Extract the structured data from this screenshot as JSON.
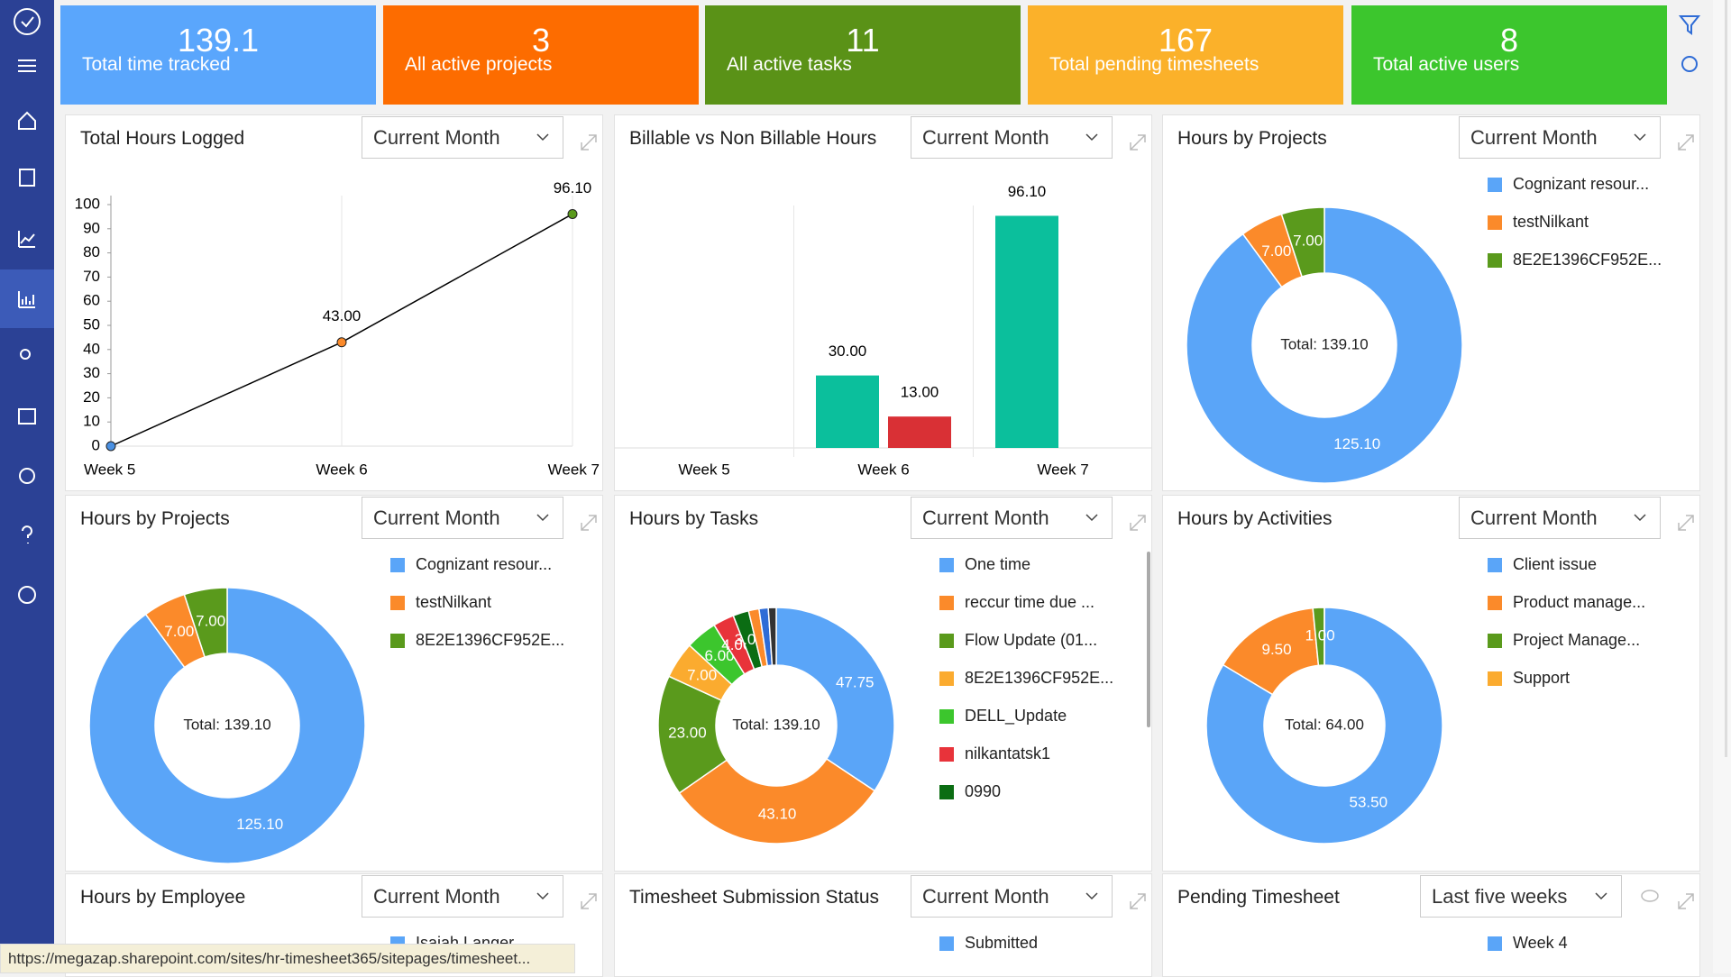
{
  "status_url": "https://megazap.sharepoint.com/sites/hr-timesheet365/sitepages/timesheet...",
  "kpis": [
    {
      "value": 139.1,
      "label": "Total time tracked",
      "color": "#5aa6fc"
    },
    {
      "value": 3,
      "label": "All active projects",
      "color": "#fd6c00"
    },
    {
      "value": 11,
      "label": "All active tasks",
      "color": "#5a9217"
    },
    {
      "value": 167,
      "label": "Total pending timesheets",
      "color": "#fbb12a"
    },
    {
      "value": 8,
      "label": "Total active users",
      "color": "#3cc62d"
    }
  ],
  "widgets": [
    {
      "title": "Total Hours Logged",
      "filter": "Current Month",
      "chart_data": {
        "type": "line",
        "categories": [
          "Week 5",
          "Week 6",
          "Week 7"
        ],
        "values": [
          0,
          43,
          96.1
        ],
        "value_labels": [
          null,
          "43.00",
          "96.10"
        ],
        "color": "#000000",
        "point_colors": [
          "#4a90e2",
          "#fb8a2a",
          "#5a9a1c"
        ],
        "ylim": [
          0,
          100
        ],
        "yticks": [
          0,
          10,
          20,
          30,
          40,
          50,
          60,
          70,
          80,
          90,
          100
        ]
      }
    },
    {
      "title": "Billable vs Non Billable Hours",
      "filter": "Current Month",
      "chart_data": {
        "type": "bar",
        "categories": [
          "Week 5",
          "Week 6",
          "Week 7"
        ],
        "ylim": [
          0,
          100
        ],
        "series": [
          {
            "color": "#0bbf9c",
            "values": [
              null,
              30,
              96.1
            ],
            "value_labels": [
              null,
              "30.00",
              "96.10"
            ]
          },
          {
            "color": "#d93035",
            "values": [
              null,
              13,
              null
            ],
            "value_labels": [
              null,
              "13.00",
              null
            ]
          }
        ]
      }
    },
    {
      "title": "Hours by Projects",
      "filter": "Current Month",
      "chart_data": {
        "type": "pie",
        "total_label": "Total: 139.10",
        "categories": [
          "Cognizant resour...",
          "testNilkant",
          "8E2E1396CF952E..."
        ],
        "values": [
          125.1,
          7,
          7
        ],
        "value_labels": [
          "125.10",
          "7.00",
          "7.00"
        ],
        "colors": [
          "#5aa5f8",
          "#fb8a2a",
          "#5a9a1c"
        ]
      }
    },
    {
      "title": "Hours by Projects",
      "filter": "Current Month",
      "chart_data": {
        "type": "pie",
        "total_label": "Total: 139.10",
        "categories": [
          "Cognizant resour...",
          "testNilkant",
          "8E2E1396CF952E..."
        ],
        "values": [
          125.1,
          7,
          7
        ],
        "value_labels": [
          "125.10",
          "7.00",
          "7.00"
        ],
        "colors": [
          "#5aa5f8",
          "#fb8a2a",
          "#5a9a1c"
        ]
      }
    },
    {
      "title": "Hours by Tasks",
      "filter": "Current Month",
      "chart_data": {
        "type": "pie",
        "total_label": "Total: 139.10",
        "categories": [
          "One time",
          "reccur time due ...",
          "Flow Update (01...",
          "8E2E1396CF952E...",
          "DELL_Update",
          "nilkantatsk1",
          "0990",
          null,
          null,
          null
        ],
        "values": [
          47.75,
          43.1,
          23,
          7,
          6,
          4,
          3,
          2,
          1.75,
          1.5
        ],
        "value_labels": [
          "47.75",
          "43.10",
          "23.00",
          "7.00",
          "6.00",
          "4.00",
          "3.00",
          null,
          null,
          null
        ],
        "colors": [
          "#5aa5f8",
          "#fb8a2a",
          "#5a9a1c",
          "#fbab2f",
          "#3cc62d",
          "#e8333a",
          "#0b6d13",
          "#fb8a2a",
          "#2f6cd6",
          "#333333"
        ]
      }
    },
    {
      "title": "Hours by Activities",
      "filter": "Current Month",
      "chart_data": {
        "type": "pie",
        "total_label": "Total: 64.00",
        "categories": [
          "Client issue",
          "Product manage...",
          "Project Manage...",
          "Support"
        ],
        "values": [
          53.5,
          9.5,
          1,
          0
        ],
        "value_labels": [
          "53.50",
          "9.50",
          "1.00",
          null
        ],
        "colors": [
          "#5aa5f8",
          "#fb8a2a",
          "#5a9a1c",
          "#fbab2f"
        ]
      }
    },
    {
      "title": "Hours by Employee",
      "filter": "Current Month",
      "legend": [
        {
          "name": "Isaiah Langer",
          "color": "#5aa5f8"
        }
      ]
    },
    {
      "title": "Timesheet Submission Status",
      "filter": "Current Month",
      "legend": [
        {
          "name": "Submitted",
          "color": "#5aa5f8"
        }
      ]
    },
    {
      "title": "Pending Timesheet",
      "filter": "Last five weeks",
      "legend": [
        {
          "name": "Week 4",
          "color": "#5aa5f8"
        }
      ]
    }
  ]
}
